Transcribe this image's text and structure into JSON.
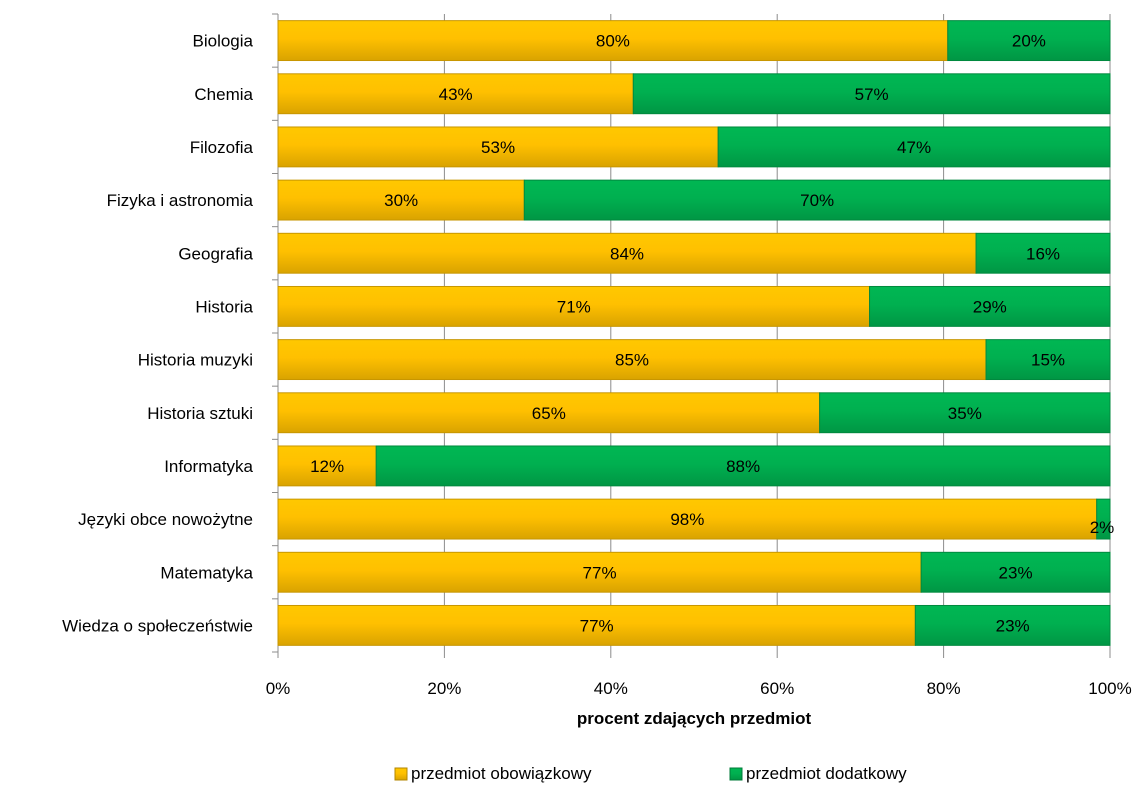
{
  "chart_data": {
    "type": "bar",
    "orientation": "horizontal",
    "stacked": "percent",
    "categories": [
      "Biologia",
      "Chemia",
      "Filozofia",
      "Fizyka i astronomia",
      "Geografia",
      "Historia",
      "Historia muzyki",
      "Historia sztuki",
      "Informatyka",
      "Języki obce nowożytne",
      "Matematyka",
      "Wiedza o społeczeństwie"
    ],
    "series": [
      {
        "name": "przedmiot obowiązkowy",
        "color": "#FFC000",
        "values": [
          80.5,
          42.7,
          52.9,
          29.6,
          83.9,
          71.1,
          85.1,
          65.1,
          11.8,
          98.4,
          77.3,
          76.6
        ],
        "labels": [
          "80%",
          "43%",
          "53%",
          "30%",
          "84%",
          "71%",
          "85%",
          "65%",
          "12%",
          "98%",
          "77%",
          "77%"
        ]
      },
      {
        "name": "przedmiot dodatkowy",
        "color": "#00B050",
        "values": [
          19.5,
          57.3,
          47.1,
          70.4,
          16.1,
          28.9,
          14.9,
          34.9,
          88.2,
          1.6,
          22.7,
          23.4
        ],
        "labels": [
          "20%",
          "57%",
          "47%",
          "70%",
          "16%",
          "29%",
          "15%",
          "35%",
          "88%",
          "2%",
          "23%",
          "23%"
        ]
      }
    ],
    "xlabel": "procent zdających przedmiot",
    "xlim": [
      0,
      100
    ],
    "xticks": [
      "0%",
      "20%",
      "40%",
      "60%",
      "80%",
      "100%"
    ],
    "grid": "vertical",
    "legend": "bottom"
  }
}
